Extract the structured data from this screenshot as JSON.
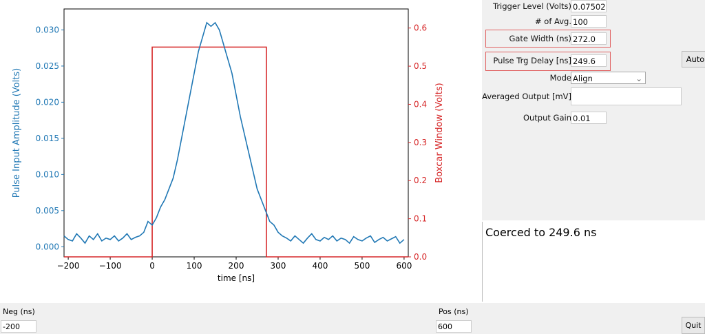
{
  "chart_data": {
    "type": "line",
    "xlabel": "time [ns]",
    "ylabel_left": "Pulse Input Amplitude (Volts)",
    "ylabel_right": "Boxcar Window (Volts)",
    "xlim": [
      -210,
      610
    ],
    "ylim_left": [
      -0.0014,
      0.0329
    ],
    "ylim_right": [
      0,
      0.65
    ],
    "xticks": [
      -200,
      -100,
      0,
      100,
      200,
      300,
      400,
      500,
      600
    ],
    "xtick_labels": [
      "−200",
      "−100",
      "0",
      "100",
      "200",
      "300",
      "400",
      "500",
      "600"
    ],
    "yticks_left": [
      0,
      0.005,
      0.01,
      0.015,
      0.02,
      0.025,
      0.03
    ],
    "ytick_labels_left": [
      "0.000",
      "0.005",
      "0.010",
      "0.015",
      "0.020",
      "0.025",
      "0.030"
    ],
    "yticks_right": [
      0,
      0.1,
      0.2,
      0.3,
      0.4,
      0.5,
      0.6
    ],
    "ytick_labels_right": [
      "0.0",
      "0.1",
      "0.2",
      "0.3",
      "0.4",
      "0.5",
      "0.6"
    ],
    "colors": {
      "pulse": "#1f77b4",
      "boxcar": "#d62728"
    },
    "pulse": {
      "name": "Pulse Input",
      "x_start": -210,
      "x_step": 10,
      "values": [
        0.0015,
        0.001,
        0.0008,
        0.0018,
        0.0012,
        0.0005,
        0.0015,
        0.001,
        0.0018,
        0.0008,
        0.0012,
        0.001,
        0.0015,
        0.0008,
        0.0012,
        0.0018,
        0.001,
        0.0013,
        0.0015,
        0.002,
        0.0035,
        0.003,
        0.004,
        0.0055,
        0.0065,
        0.008,
        0.0095,
        0.012,
        0.015,
        0.018,
        0.021,
        0.024,
        0.027,
        0.029,
        0.031,
        0.0305,
        0.031,
        0.03,
        0.028,
        0.026,
        0.024,
        0.021,
        0.018,
        0.0155,
        0.013,
        0.0105,
        0.008,
        0.0065,
        0.005,
        0.0035,
        0.003,
        0.002,
        0.0015,
        0.0012,
        0.0008,
        0.0015,
        0.001,
        0.0005,
        0.0012,
        0.0018,
        0.001,
        0.0008,
        0.0013,
        0.001,
        0.0015,
        0.0008,
        0.0012,
        0.001,
        0.0005,
        0.0014,
        0.001,
        0.0008,
        0.0012,
        0.0015,
        0.0006,
        0.001,
        0.0013,
        0.0008,
        0.0011,
        0.0014,
        0.0005,
        0.001
      ]
    },
    "boxcar": {
      "name": "Boxcar Window",
      "x": [
        -210,
        0,
        0,
        272,
        272,
        610
      ],
      "y": [
        0,
        0,
        0.55,
        0.55,
        0,
        0
      ]
    }
  },
  "controls": {
    "trigger_level": {
      "label": "Trigger Level (Volts)",
      "value": "0.0750208"
    },
    "num_avg": {
      "label": "# of Avg.",
      "value": "100"
    },
    "gate_width": {
      "label": "Gate Width (ns)",
      "value": "272.0"
    },
    "pulse_delay": {
      "label": "Pulse Trg Delay [ns]",
      "value": "249.6"
    },
    "auto_button": "Auto",
    "mode": {
      "label": "Mode",
      "value": "Align"
    },
    "averaged_output": {
      "label": "Averaged Output [mV]",
      "value": ""
    },
    "output_gain": {
      "label": "Output Gain",
      "value": "0.01"
    }
  },
  "message": "Coerced to 249.6 ns",
  "bottom": {
    "neg_label": "Neg (ns)",
    "neg_value": "-200",
    "pos_label": "Pos (ns)",
    "pos_value": "600",
    "quit_button": "Quit"
  }
}
